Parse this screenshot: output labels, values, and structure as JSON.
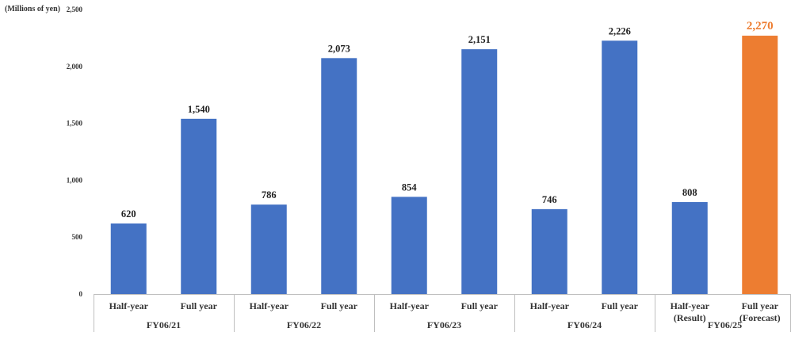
{
  "chart_data": {
    "type": "bar",
    "unit_label": "(Millions of yen)",
    "ylim": [
      0,
      2500
    ],
    "yticks": [
      0,
      500,
      1000,
      1500,
      2000,
      2500
    ],
    "ytick_labels": [
      "0",
      "500",
      "1,000",
      "1,500",
      "2,000",
      "2,500"
    ],
    "grid": false,
    "categories": [
      "Half-year",
      "Full year",
      "Half-year",
      "Full year",
      "Half-year",
      "Full year",
      "Half-year",
      "Full year",
      "Half-year (Result)",
      "Full year (Forecast)"
    ],
    "category_lines": [
      [
        "Half-year"
      ],
      [
        "Full year"
      ],
      [
        "Half-year"
      ],
      [
        "Full year"
      ],
      [
        "Half-year"
      ],
      [
        "Full year"
      ],
      [
        "Half-year"
      ],
      [
        "Full year"
      ],
      [
        "Half-year",
        "(Result)"
      ],
      [
        "Full year",
        "(Forecast)"
      ]
    ],
    "groups": [
      "FY06/21",
      "FY06/22",
      "FY06/23",
      "FY06/24",
      "FY06/25"
    ],
    "values": [
      620,
      1540,
      786,
      2073,
      854,
      2151,
      746,
      2226,
      808,
      2270
    ],
    "value_labels": [
      "620",
      "1,540",
      "786",
      "2,073",
      "854",
      "2,151",
      "746",
      "2,226",
      "808",
      "2,270"
    ],
    "colors": [
      "#4472C4",
      "#4472C4",
      "#4472C4",
      "#4472C4",
      "#4472C4",
      "#4472C4",
      "#4472C4",
      "#4472C4",
      "#4472C4",
      "#ED7D31"
    ],
    "label_colors": [
      "#222222",
      "#222222",
      "#222222",
      "#222222",
      "#222222",
      "#222222",
      "#222222",
      "#222222",
      "#222222",
      "#ED7D31"
    ],
    "axis_color": "#BFBFBF"
  }
}
